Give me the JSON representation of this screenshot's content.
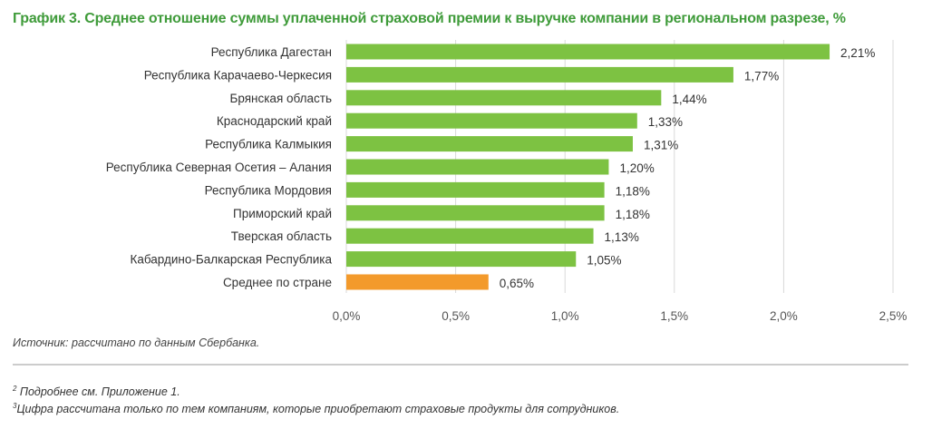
{
  "chart_data": {
    "type": "bar",
    "orientation": "horizontal",
    "title": "График 3. Среднее отношение суммы уплаченной страховой премии к выручке компании в региональном разрезе, %",
    "categories": [
      "Республика Дагестан",
      "Республика Карачаево-Черкесия",
      "Брянская область",
      "Краснодарский край",
      "Республика Калмыкия",
      "Республика Северная Осетия – Алания",
      "Республика Мордовия",
      "Приморский край",
      "Тверская область",
      "Кабардино-Балкарская Республика",
      "Среднее по стране"
    ],
    "values": [
      2.21,
      1.77,
      1.44,
      1.33,
      1.31,
      1.2,
      1.18,
      1.18,
      1.13,
      1.05,
      0.65
    ],
    "value_labels": [
      "2,21%",
      "1,77%",
      "1,44%",
      "1,33%",
      "1,31%",
      "1,20%",
      "1,18%",
      "1,18%",
      "1,13%",
      "1,05%",
      "0,65%"
    ],
    "colors": [
      "#7dc242",
      "#7dc242",
      "#7dc242",
      "#7dc242",
      "#7dc242",
      "#7dc242",
      "#7dc242",
      "#7dc242",
      "#7dc242",
      "#7dc242",
      "#f39a2b"
    ],
    "xlim": [
      0,
      2.5
    ],
    "xticks": [
      0,
      0.5,
      1.0,
      1.5,
      2.0,
      2.5
    ],
    "xtick_labels": [
      "0,0%",
      "0,5%",
      "1,0%",
      "1,5%",
      "2,0%",
      "2,5%"
    ],
    "grid": "vertical",
    "legend": "none"
  },
  "source": "Источник: рассчитано по данным Сбербанка.",
  "footnotes": [
    {
      "mark": "2",
      "text": " Подробнее см. Приложение 1."
    },
    {
      "mark": "3",
      "text": "Цифра рассчитана только по тем компаниям, которые приобретают страховые продукты для сотрудников."
    }
  ]
}
